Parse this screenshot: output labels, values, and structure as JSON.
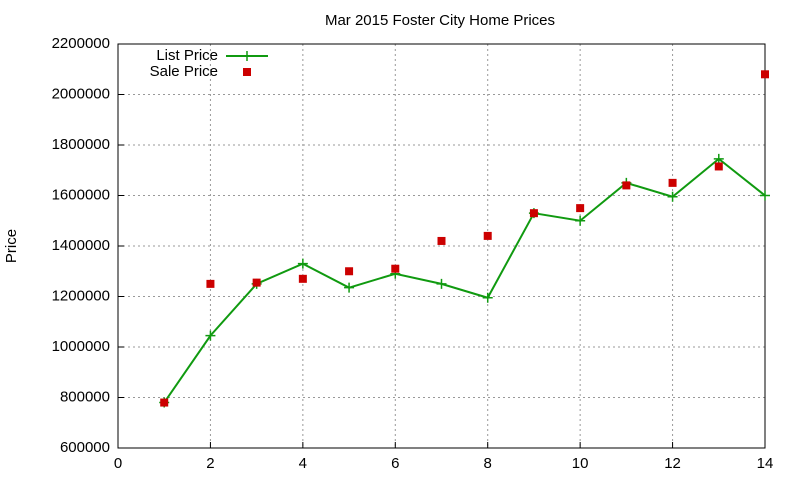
{
  "chart_data": {
    "type": "line",
    "title": "Mar 2015 Foster City Home Prices",
    "y_label": "Price",
    "x": [
      1,
      2,
      3,
      4,
      5,
      6,
      7,
      8,
      9,
      10,
      11,
      12,
      13,
      14
    ],
    "series": [
      {
        "name": "List Price",
        "color": "#109a10",
        "style": "linespoints",
        "values": [
          780000,
          1045000,
          1250000,
          1330000,
          1235000,
          1290000,
          1250000,
          1195000,
          1530000,
          1500000,
          1650000,
          1595000,
          1745000,
          1600000
        ]
      },
      {
        "name": "Sale Price",
        "color": "#cc0000",
        "style": "points",
        "values": [
          780000,
          1250000,
          1255000,
          1270000,
          1300000,
          1310000,
          1420000,
          1440000,
          1530000,
          1550000,
          1640000,
          1650000,
          1715000,
          2080000
        ]
      }
    ],
    "xlim": [
      0,
      14
    ],
    "xticks": [
      0,
      2,
      4,
      6,
      8,
      10,
      12,
      14
    ],
    "ylim": [
      600000,
      2200000
    ],
    "yticks": [
      600000,
      800000,
      1000000,
      1200000,
      1400000,
      1600000,
      1800000,
      2000000,
      2200000
    ],
    "grid": true,
    "legend": "top-left"
  }
}
